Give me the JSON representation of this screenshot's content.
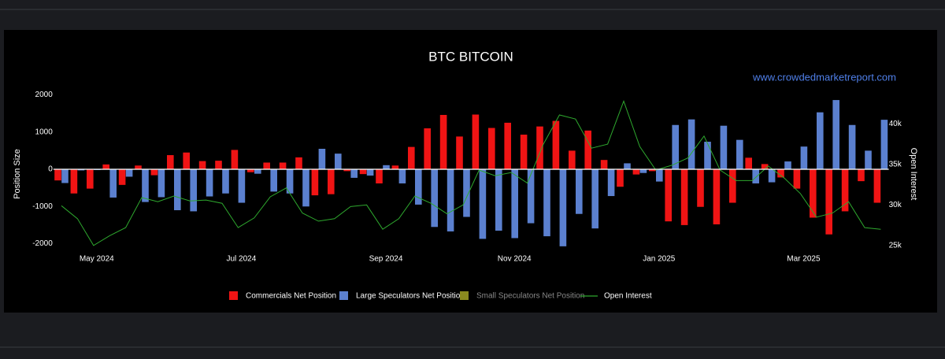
{
  "chart_data": {
    "type": "bar",
    "title": "BTC BITCOIN",
    "annotation": "www.crowdedmarketreport.com",
    "ylabel": "Position Size",
    "y2label": "Open Interest",
    "categories": [
      null,
      null,
      "May 2024",
      null,
      null,
      null,
      null,
      null,
      null,
      null,
      null,
      "Jul 2024",
      null,
      null,
      null,
      null,
      null,
      null,
      null,
      null,
      "Sep 2024",
      null,
      null,
      null,
      null,
      null,
      null,
      null,
      "Nov 2024",
      null,
      null,
      null,
      null,
      null,
      null,
      null,
      null,
      "Jan 2025",
      null,
      null,
      null,
      null,
      null,
      null,
      null,
      null,
      "Mar 2025",
      null,
      null,
      null,
      null,
      null
    ],
    "ylim": [
      -2200,
      2200
    ],
    "yticks": [
      -2000,
      -1000,
      0,
      1000,
      2000
    ],
    "y2lim": [
      24300,
      44500
    ],
    "y2ticks": [
      {
        "value": 25000,
        "label": "25k"
      },
      {
        "value": 30000,
        "label": "30k"
      },
      {
        "value": 35000,
        "label": "35k"
      },
      {
        "value": 40000,
        "label": "40k"
      }
    ],
    "series": [
      {
        "name": "Commercials Net Position",
        "color": "#f01414",
        "values": [
          -300,
          -650,
          -520,
          130,
          -420,
          100,
          -160,
          380,
          450,
          220,
          230,
          520,
          -80,
          180,
          180,
          320,
          -700,
          -670,
          -50,
          -130,
          -380,
          100,
          600,
          1100,
          1460,
          880,
          1470,
          1110,
          1250,
          930,
          1150,
          1300,
          500,
          1040,
          250,
          -470,
          -140,
          -50,
          -1400,
          -1500,
          -1010,
          -1480,
          -900,
          310,
          140,
          -220,
          -520,
          -1300,
          -1750,
          -1130,
          -320,
          -900
        ]
      },
      {
        "name": "Large Speculators Net Position",
        "color": "#5b80cf",
        "values": [
          -370,
          -30,
          -20,
          -760,
          -200,
          -880,
          -750,
          -1100,
          -1130,
          -730,
          -650,
          -900,
          -120,
          -600,
          -650,
          -1000,
          550,
          420,
          -230,
          -170,
          110,
          -380,
          -950,
          -1550,
          -1670,
          -1280,
          -1870,
          -1650,
          -1850,
          -1450,
          -1800,
          -2070,
          -1200,
          -1590,
          -720,
          160,
          -100,
          -330,
          1190,
          1340,
          740,
          1170,
          790,
          -380,
          -350,
          210,
          610,
          1530,
          1860,
          1190,
          500,
          1330
        ]
      },
      {
        "name": "Small Speculators Net Position",
        "color": "#8a8a1f",
        "hidden": true
      },
      {
        "name": "Open Interest",
        "color": "#2ea82e",
        "type": "line",
        "axis": "y2",
        "values": [
          29900,
          28300,
          25000,
          26200,
          27200,
          30900,
          30400,
          31100,
          30500,
          30600,
          30200,
          27200,
          28400,
          31000,
          32100,
          29000,
          28000,
          28300,
          29800,
          30000,
          27000,
          28300,
          31100,
          30200,
          28900,
          30000,
          34300,
          33600,
          34000,
          32700,
          37500,
          41100,
          40600,
          37000,
          37500,
          42800,
          37200,
          34300,
          34900,
          35800,
          38500,
          34300,
          33000,
          33000,
          34800,
          33300,
          31400,
          28500,
          29000,
          30400,
          27200,
          27000
        ]
      }
    ]
  }
}
